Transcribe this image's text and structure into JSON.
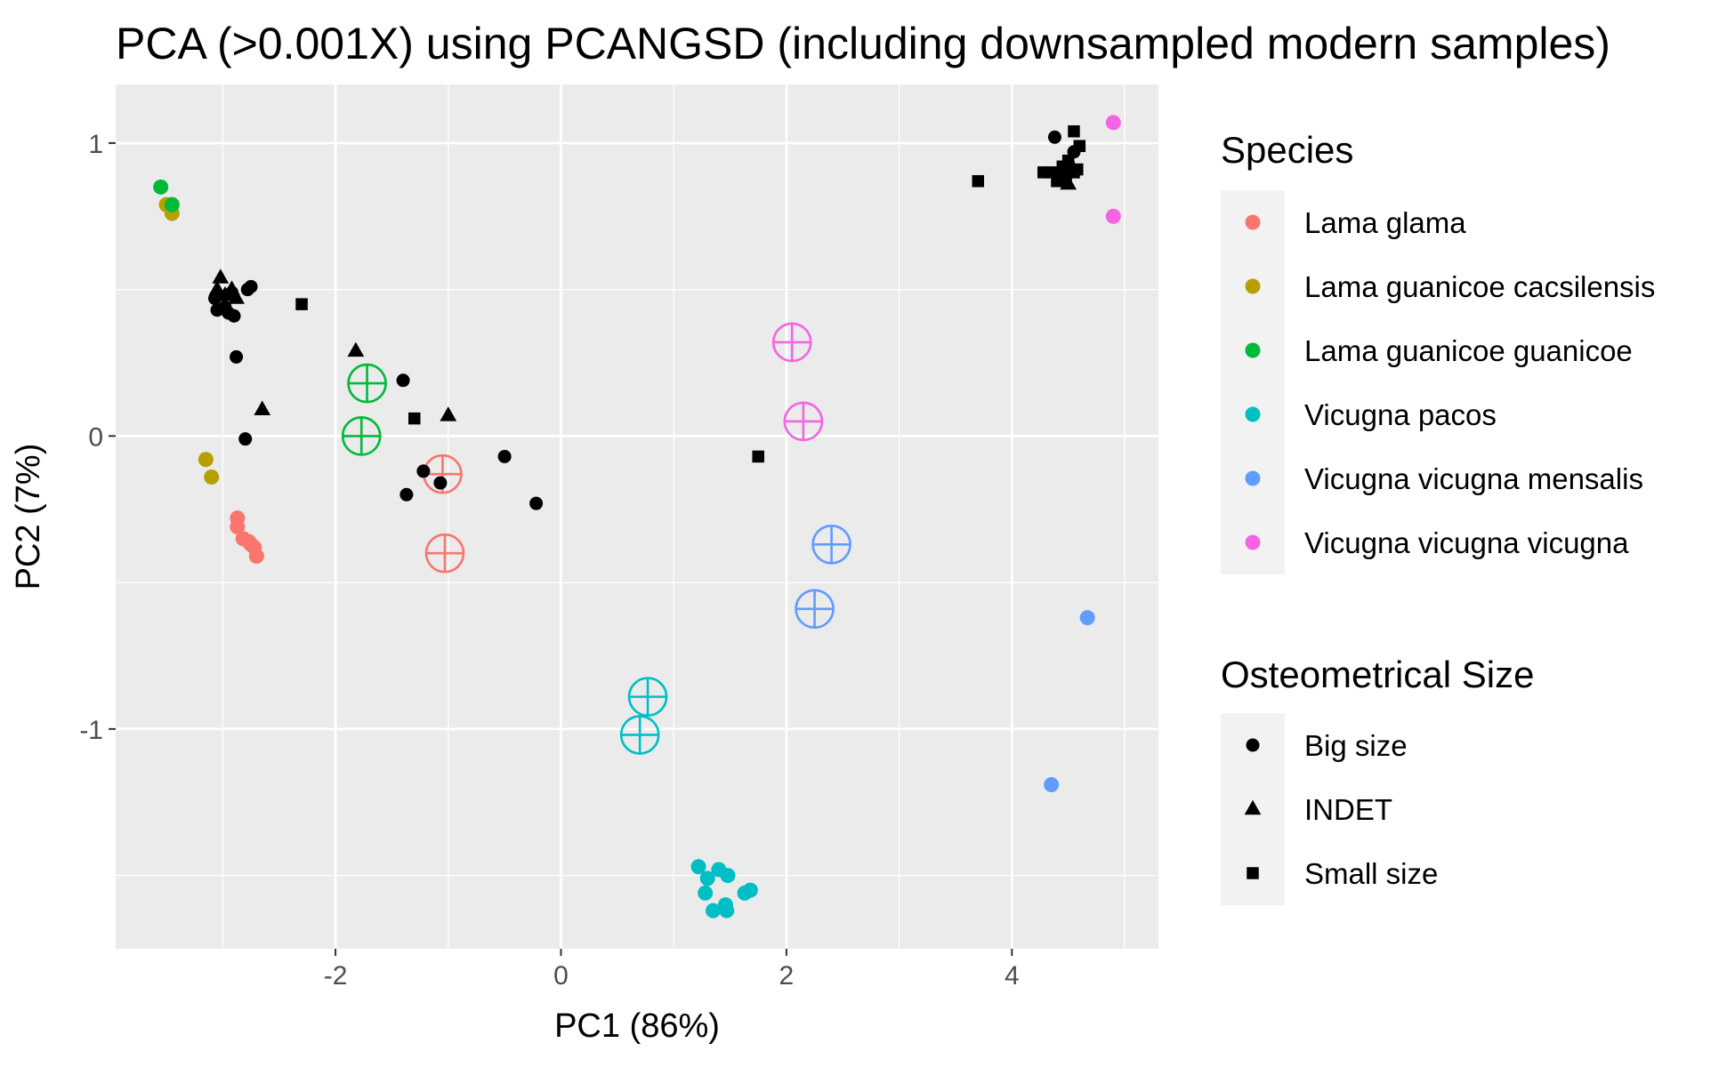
{
  "chart_data": {
    "type": "scatter",
    "title": "PCA (>0.001X) using PCANGSD (including downsampled modern samples)",
    "xlabel": "PC1 (86%)",
    "ylabel": "PC2 (7%)",
    "xlim": [
      -3.95,
      5.3
    ],
    "ylim": [
      -1.75,
      1.2
    ],
    "xticks": [
      -2,
      0,
      2,
      4
    ],
    "yticks": [
      -1,
      0,
      1
    ],
    "xtick_labels": [
      "-2",
      "0",
      "2",
      "4"
    ],
    "ytick_labels": [
      "-1",
      "0",
      "1"
    ],
    "grid": true,
    "legend_position": "right",
    "species_legend": {
      "title": "Species",
      "entries": [
        {
          "name": "Lama glama",
          "color": "#F8766D"
        },
        {
          "name": "Lama guanicoe cacsilensis",
          "color": "#B79F00"
        },
        {
          "name": "Lama guanicoe guanicoe",
          "color": "#00BA38"
        },
        {
          "name": "Vicugna pacos",
          "color": "#00BFC4"
        },
        {
          "name": "Vicugna vicugna mensalis",
          "color": "#619CFF"
        },
        {
          "name": "Vicugna vicugna vicugna",
          "color": "#F564E3"
        }
      ]
    },
    "size_legend": {
      "title": "Osteometrical Size",
      "entries": [
        {
          "name": "Big size",
          "shape": "circle"
        },
        {
          "name": "INDET",
          "shape": "triangle"
        },
        {
          "name": "Small size",
          "shape": "square"
        }
      ]
    },
    "series": [
      {
        "species": "Lama glama",
        "marker": "dot",
        "points": [
          [
            -2.87,
            -0.28
          ],
          [
            -2.87,
            -0.31
          ],
          [
            -2.82,
            -0.35
          ],
          [
            -2.77,
            -0.36
          ],
          [
            -2.75,
            -0.37
          ],
          [
            -2.72,
            -0.38
          ],
          [
            -2.7,
            -0.41
          ]
        ]
      },
      {
        "species": "Lama glama",
        "marker": "circle-plus",
        "points": [
          [
            -1.05,
            -0.13
          ],
          [
            -1.03,
            -0.4
          ]
        ]
      },
      {
        "species": "Lama guanicoe cacsilensis",
        "marker": "dot",
        "points": [
          [
            -3.5,
            0.79
          ],
          [
            -3.45,
            0.76
          ],
          [
            -3.15,
            -0.08
          ],
          [
            -3.1,
            -0.14
          ]
        ]
      },
      {
        "species": "Lama guanicoe guanicoe",
        "marker": "dot",
        "points": [
          [
            -3.55,
            0.85
          ],
          [
            -3.45,
            0.79
          ]
        ]
      },
      {
        "species": "Lama guanicoe guanicoe",
        "marker": "circle-plus",
        "points": [
          [
            -1.72,
            0.18
          ],
          [
            -1.77,
            0.0
          ]
        ]
      },
      {
        "species": "Vicugna pacos",
        "marker": "dot",
        "points": [
          [
            1.22,
            -1.47
          ],
          [
            1.3,
            -1.51
          ],
          [
            1.4,
            -1.48
          ],
          [
            1.48,
            -1.5
          ],
          [
            1.28,
            -1.56
          ],
          [
            1.46,
            -1.6
          ],
          [
            1.35,
            -1.62
          ],
          [
            1.47,
            -1.62
          ],
          [
            1.63,
            -1.56
          ],
          [
            1.68,
            -1.55
          ]
        ]
      },
      {
        "species": "Vicugna pacos",
        "marker": "circle-plus",
        "points": [
          [
            0.77,
            -0.89
          ],
          [
            0.7,
            -1.02
          ]
        ]
      },
      {
        "species": "Vicugna vicugna mensalis",
        "marker": "dot",
        "points": [
          [
            4.67,
            -0.62
          ],
          [
            4.35,
            -1.19
          ]
        ]
      },
      {
        "species": "Vicugna vicugna mensalis",
        "marker": "circle-plus",
        "points": [
          [
            2.4,
            -0.37
          ],
          [
            2.25,
            -0.59
          ]
        ]
      },
      {
        "species": "Vicugna vicugna vicugna",
        "marker": "dot",
        "points": [
          [
            4.9,
            1.07
          ],
          [
            4.9,
            0.75
          ]
        ]
      },
      {
        "species": "Vicugna vicugna vicugna",
        "marker": "circle-plus",
        "points": [
          [
            2.05,
            0.32
          ],
          [
            2.15,
            0.05
          ]
        ]
      },
      {
        "size": "Big size",
        "marker": "circle",
        "points": [
          [
            -3.07,
            0.47
          ],
          [
            -3.05,
            0.43
          ],
          [
            -2.98,
            0.44
          ],
          [
            -2.92,
            0.49
          ],
          [
            -2.95,
            0.42
          ],
          [
            -2.9,
            0.41
          ],
          [
            -2.78,
            0.5
          ],
          [
            -2.75,
            0.51
          ],
          [
            -2.88,
            0.27
          ],
          [
            -2.8,
            -0.01
          ],
          [
            -1.4,
            0.19
          ],
          [
            -1.22,
            -0.12
          ],
          [
            -1.37,
            -0.2
          ],
          [
            -1.07,
            -0.16
          ],
          [
            -0.5,
            -0.07
          ],
          [
            -0.22,
            -0.23
          ],
          [
            4.38,
            1.02
          ],
          [
            4.5,
            0.93
          ],
          [
            4.55,
            0.97
          ],
          [
            4.42,
            0.89
          ]
        ]
      },
      {
        "size": "INDET",
        "marker": "triangle",
        "points": [
          [
            -3.02,
            0.54
          ],
          [
            -3.05,
            0.5
          ],
          [
            -2.98,
            0.48
          ],
          [
            -2.92,
            0.5
          ],
          [
            -2.88,
            0.47
          ],
          [
            -2.65,
            0.09
          ],
          [
            -1.82,
            0.29
          ],
          [
            -1.0,
            0.07
          ],
          [
            4.45,
            0.88
          ],
          [
            4.5,
            0.86
          ]
        ]
      },
      {
        "size": "Small size",
        "marker": "square",
        "points": [
          [
            -2.3,
            0.45
          ],
          [
            -1.3,
            0.06
          ],
          [
            1.75,
            -0.07
          ],
          [
            3.7,
            0.87
          ],
          [
            4.28,
            0.9
          ],
          [
            4.35,
            0.9
          ],
          [
            4.45,
            0.92
          ],
          [
            4.5,
            0.94
          ],
          [
            4.55,
            0.9
          ],
          [
            4.58,
            0.91
          ],
          [
            4.6,
            0.99
          ],
          [
            4.55,
            1.04
          ],
          [
            4.48,
            0.88
          ],
          [
            4.4,
            0.87
          ]
        ]
      }
    ]
  }
}
